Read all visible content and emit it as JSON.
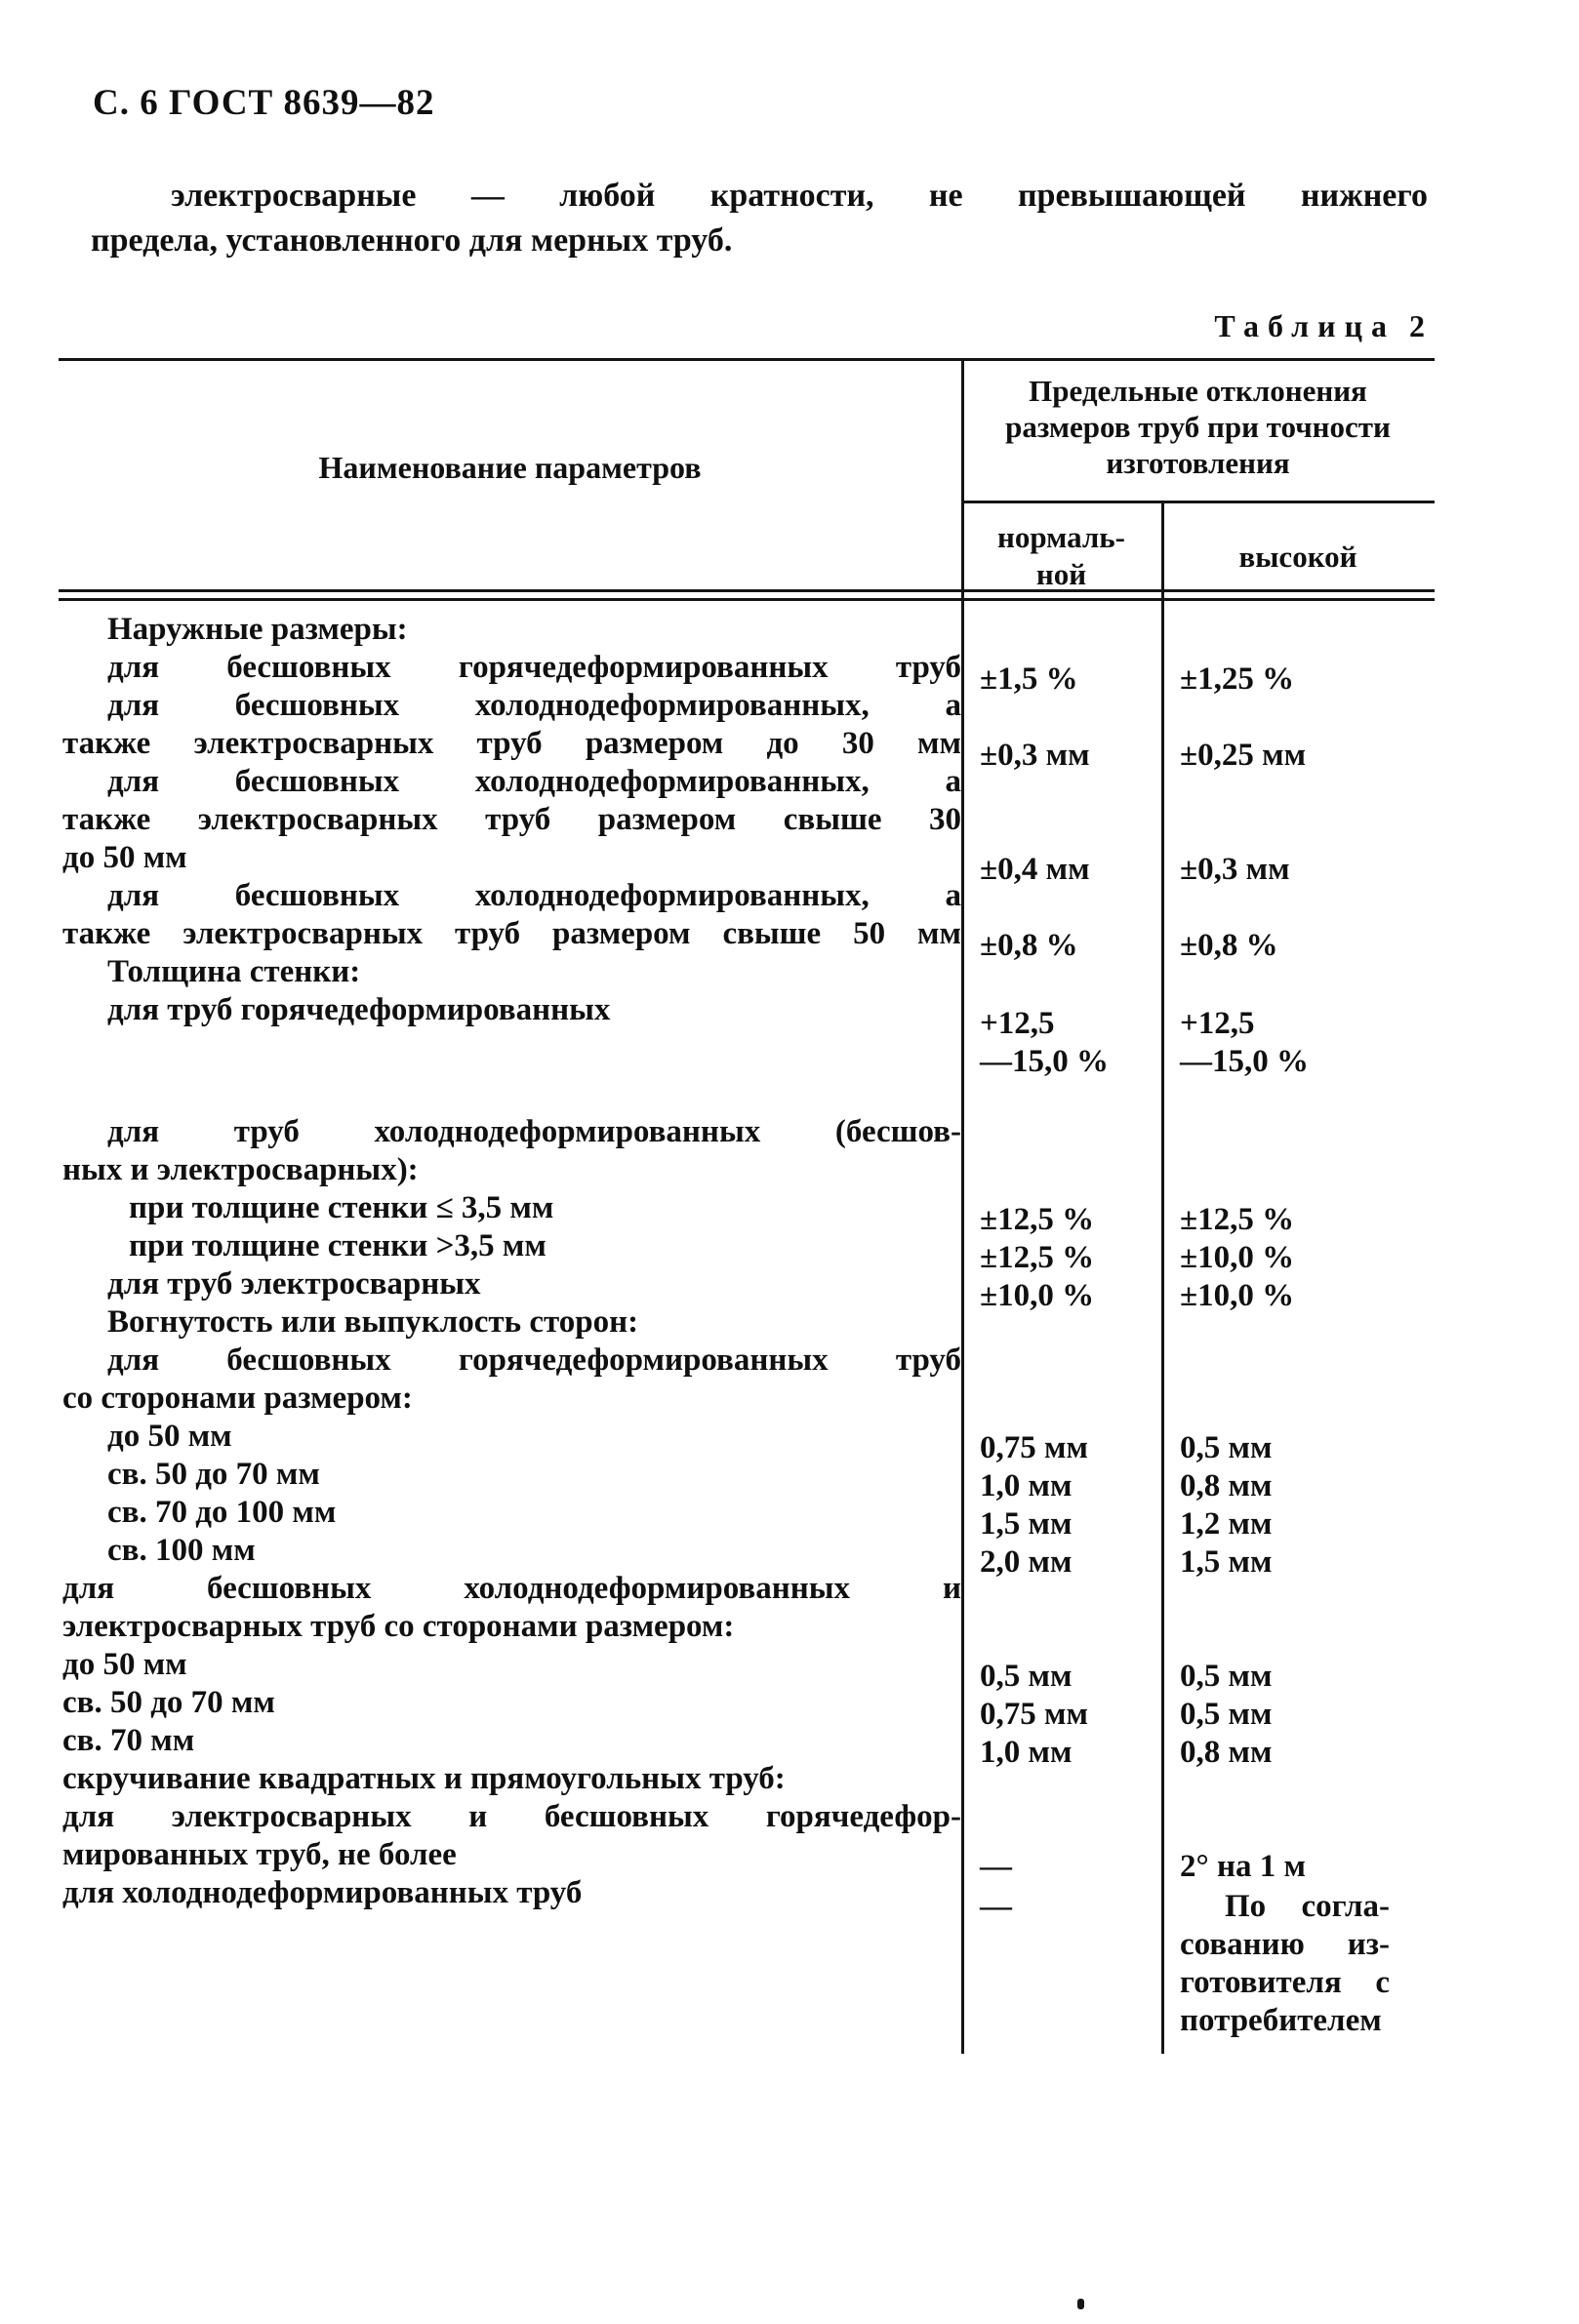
{
  "page_header": "С. 6 ГОСТ 8639—82",
  "intro": {
    "line1": "электросварные — любой кратности, не превышающей нижнего",
    "line2": "предела, установленного для мерных труб."
  },
  "caption": {
    "word": "Таблица",
    "number": "2"
  },
  "colors": {
    "ink": "#101010",
    "paper": "#ffffff"
  },
  "table": {
    "head": {
      "name_col": "Наименование параметров",
      "group_line1": "Предельные отклонения",
      "group_line2": "размеров труб при точности",
      "group_line3": "изготовления",
      "sub_normal_line1": "нормаль-",
      "sub_normal_line2": "ной",
      "sub_high": "высокой"
    },
    "rows": [
      {
        "name": [
          {
            "t": "Наружные размеры:",
            "ind": 1
          }
        ]
      },
      {
        "name": [
          {
            "t": "для бесшовных горячедеформированных труб",
            "ind": 1,
            "j": true
          }
        ],
        "v1": [
          {
            "t": "±1,5 %"
          }
        ],
        "v2": [
          {
            "t": "±1,25 %"
          }
        ]
      },
      {
        "name": [
          {
            "t": "для бесшовных холоднодеформированных, а",
            "ind": 1,
            "j": true
          },
          {
            "t": "также электросварных труб размером до 30 мм",
            "ind": 0,
            "j": true
          }
        ],
        "v1": [
          {
            "t": "±0,3 мм"
          }
        ],
        "v2": [
          {
            "t": "±0,25 мм"
          }
        ]
      },
      {
        "name": [
          {
            "t": "для бесшовных холоднодеформированных, а",
            "ind": 1,
            "j": true
          },
          {
            "t": "также электросварных труб размером свыше 30",
            "ind": 0,
            "j": true
          },
          {
            "t": "до 50 мм",
            "ind": 0
          }
        ],
        "v1": [
          {
            "t": "±0,4 мм"
          }
        ],
        "v2": [
          {
            "t": "±0,3 мм"
          }
        ]
      },
      {
        "name": [
          {
            "t": "для бесшовных холоднодеформированных, а",
            "ind": 1,
            "j": true
          },
          {
            "t": "также электросварных труб размером свыше 50 мм",
            "ind": 0,
            "j": true
          }
        ],
        "v1": [
          {
            "t": "±0,8 %"
          }
        ],
        "v2": [
          {
            "t": "±0,8 %"
          }
        ]
      },
      {
        "name": [
          {
            "t": "Толщина стенки:",
            "ind": 1
          }
        ]
      },
      {
        "name": [
          {
            "t": "для труб горячедеформированных",
            "ind": 1
          }
        ],
        "v1": [
          {
            "t": "+12,5"
          },
          {
            "t": "—15,0 %"
          }
        ],
        "v2": [
          {
            "t": "+12,5"
          },
          {
            "t": "—15,0 %"
          }
        ],
        "valign": "top",
        "gap_after": 33
      },
      {
        "name": [
          {
            "t": "для труб холоднодеформированных (бесшов-",
            "ind": 1,
            "j": true
          },
          {
            "t": "ных и электросварных):",
            "ind": 0
          }
        ]
      },
      {
        "name": [
          {
            "t": "при толщине стенки ≤ 3,5 мм",
            "ind": 2
          }
        ],
        "v1": [
          {
            "t": "±12,5 %"
          }
        ],
        "v2": [
          {
            "t": "±12,5 %"
          }
        ]
      },
      {
        "name": [
          {
            "t": "при толщине стенки >3,5 мм",
            "ind": 2
          }
        ],
        "v1": [
          {
            "t": "±12,5 %"
          }
        ],
        "v2": [
          {
            "t": "±10,0 %"
          }
        ]
      },
      {
        "name": [
          {
            "t": "для труб электросварных",
            "ind": 1
          }
        ],
        "v1": [
          {
            "t": "±10,0 %"
          }
        ],
        "v2": [
          {
            "t": "±10,0 %"
          }
        ]
      },
      {
        "name": [
          {
            "t": "Вогнутость или выпуклость сторон:",
            "ind": 1
          }
        ]
      },
      {
        "name": [
          {
            "t": "для бесшовных горячедеформированных труб",
            "ind": 1,
            "j": true
          },
          {
            "t": "со сторонами размером:",
            "ind": 0
          }
        ]
      },
      {
        "name": [
          {
            "t": "до 50 мм",
            "ind": 1
          }
        ],
        "v1": [
          {
            "t": "0,75 мм"
          }
        ],
        "v2": [
          {
            "t": "0,5 мм"
          }
        ]
      },
      {
        "name": [
          {
            "t": "св. 50 до 70 мм",
            "ind": 1
          }
        ],
        "v1": [
          {
            "t": "1,0 мм"
          }
        ],
        "v2": [
          {
            "t": "0,8 мм"
          }
        ]
      },
      {
        "name": [
          {
            "t": "св. 70 до 100 мм",
            "ind": 1
          }
        ],
        "v1": [
          {
            "t": "1,5 мм"
          }
        ],
        "v2": [
          {
            "t": "1,2 мм"
          }
        ]
      },
      {
        "name": [
          {
            "t": "св. 100 мм",
            "ind": 1
          }
        ],
        "v1": [
          {
            "t": "2,0 мм"
          }
        ],
        "v2": [
          {
            "t": "1,5 мм"
          }
        ]
      },
      {
        "name": [
          {
            "t": "для бесшовных холоднодеформированных и",
            "ind": 0,
            "j": true
          },
          {
            "t": "электросварных труб со сторонами размером:",
            "ind": 0
          }
        ]
      },
      {
        "name": [
          {
            "t": "до 50 мм",
            "ind": 0
          }
        ],
        "v1": [
          {
            "t": "0,5 мм"
          }
        ],
        "v2": [
          {
            "t": "0,5 мм"
          }
        ]
      },
      {
        "name": [
          {
            "t": "св. 50 до 70 мм",
            "ind": 0
          }
        ],
        "v1": [
          {
            "t": "0,75 мм"
          }
        ],
        "v2": [
          {
            "t": "0,5 мм"
          }
        ]
      },
      {
        "name": [
          {
            "t": "св. 70 мм",
            "ind": 0
          }
        ],
        "v1": [
          {
            "t": "1,0 мм"
          }
        ],
        "v2": [
          {
            "t": "0,8 мм"
          }
        ]
      },
      {
        "name": [
          {
            "t": "скручивание квадратных и прямоугольных труб:",
            "ind": 0
          }
        ]
      },
      {
        "name": [
          {
            "t": "для электросварных и бесшовных горячедефор-",
            "ind": 0,
            "j": true
          },
          {
            "t": "мированных труб, не более",
            "ind": 0
          }
        ],
        "v1": [
          {
            "t": "—"
          }
        ],
        "v2": [
          {
            "t": "2° на 1 м"
          }
        ]
      },
      {
        "name": [
          {
            "t": "для холоднодеформированных труб",
            "ind": 0
          }
        ],
        "v1": [
          {
            "t": "—"
          }
        ],
        "v2": [
          {
            "t": "По согла-",
            "ind": 1,
            "j": true
          },
          {
            "t": "сованию из-",
            "j": true
          },
          {
            "t": "готовителя с",
            "j": true
          },
          {
            "t": "потребителем"
          }
        ],
        "valign": "top"
      }
    ]
  }
}
